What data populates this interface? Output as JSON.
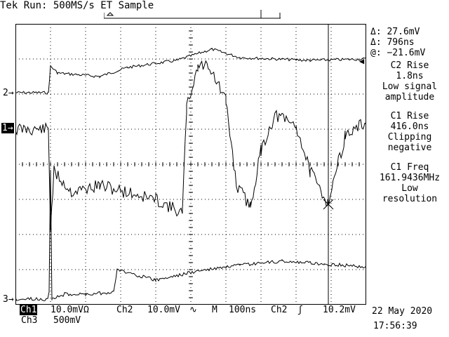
{
  "header": {
    "status": "Tek Run: 500MS/s ET Sample"
  },
  "readouts": {
    "delta_v": "Δ: 27.6mV",
    "delta_t": "Δ: 796ns",
    "at_v": "@: −21.6mV",
    "meas": [
      [
        "C2 Rise",
        "1.8ns",
        "Low signal",
        "amplitude"
      ],
      [
        "C1 Rise",
        "416.0ns",
        "Clipping",
        "negative"
      ],
      [
        "C1 Freq",
        "161.9436MHz",
        "Low",
        "resolution"
      ]
    ]
  },
  "markers": {
    "ch2": "2",
    "ch1": "1",
    "ch3": "3"
  },
  "bottom": {
    "ch1_label": "Ch1",
    "ch1_scale": "10.0mVΩ",
    "ch2_label": "Ch2",
    "ch2_scale": "10.0mV",
    "ch2_bw": "∿",
    "time_label": "M",
    "time_scale": "100ns",
    "trig_src": "Ch2",
    "trig_slope": "ʃ",
    "trig_level": "10.2mV",
    "ch3_label": "Ch3",
    "ch3_scale": "500mV",
    "date": "22 May 2020",
    "time": "17:56:39"
  },
  "colors": {
    "background": "#ffffff",
    "foreground": "#000000"
  }
}
